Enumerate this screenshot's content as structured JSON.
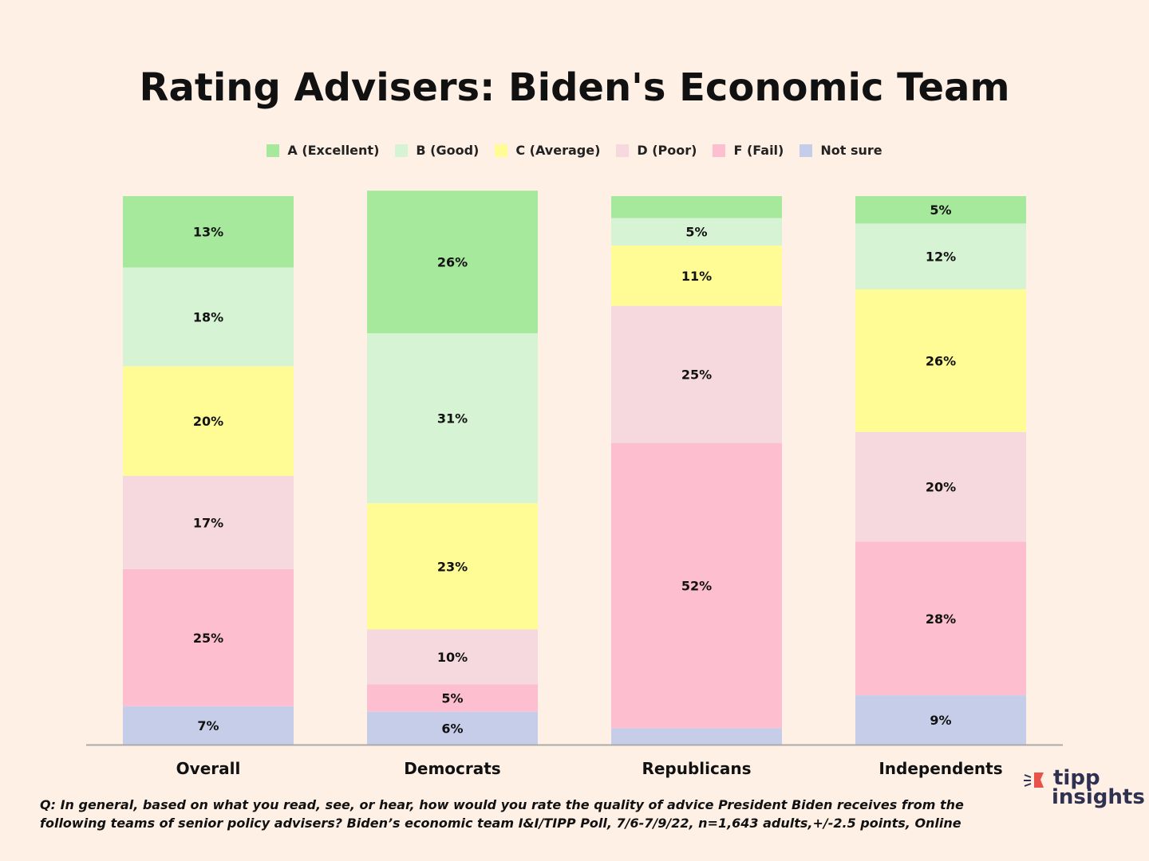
{
  "title": "Rating Advisers: Biden's Economic Team",
  "chart_data": {
    "type": "bar",
    "stacked": true,
    "title": "Rating Advisers: Biden's Economic Team",
    "categories": [
      "Overall",
      "Democrats",
      "Republicans",
      "Independents"
    ],
    "series": [
      {
        "name": "Not sure",
        "color": "#c6cde9",
        "values": [
          7,
          6,
          3,
          9
        ]
      },
      {
        "name": "F (Fail)",
        "color": "#fdbfd0",
        "values": [
          25,
          5,
          52,
          28
        ]
      },
      {
        "name": "D (Poor)",
        "color": "#f6d9df",
        "values": [
          17,
          10,
          25,
          20
        ]
      },
      {
        "name": "C (Average)",
        "color": "#fffc96",
        "values": [
          20,
          23,
          11,
          26
        ]
      },
      {
        "name": "B (Good)",
        "color": "#d6f4d4",
        "values": [
          18,
          31,
          5,
          12
        ]
      },
      {
        "name": "A (Excellent)",
        "color": "#a6e99c",
        "values": [
          13,
          26,
          4,
          5
        ]
      }
    ],
    "legend_order": [
      "A (Excellent)",
      "B (Good)",
      "C (Average)",
      "D (Poor)",
      "F (Fail)",
      "Not sure"
    ],
    "legend_position": "top-center",
    "value_suffix": "%",
    "xlabel": "",
    "ylabel": "",
    "ylim": [
      0,
      100
    ],
    "grid": false
  },
  "footer": {
    "line1": "Q:  In general, based on what you read, see, or hear, how would you rate the quality of advice President Biden receives from the",
    "line2": "following teams of senior policy advisers? Biden’s economic team I&I/TIPP Poll, 7/6-7/9/22, n=1,643 adults,+/-2.5 points, Online"
  },
  "logo": {
    "line1": "tipp",
    "line2": "insights"
  }
}
